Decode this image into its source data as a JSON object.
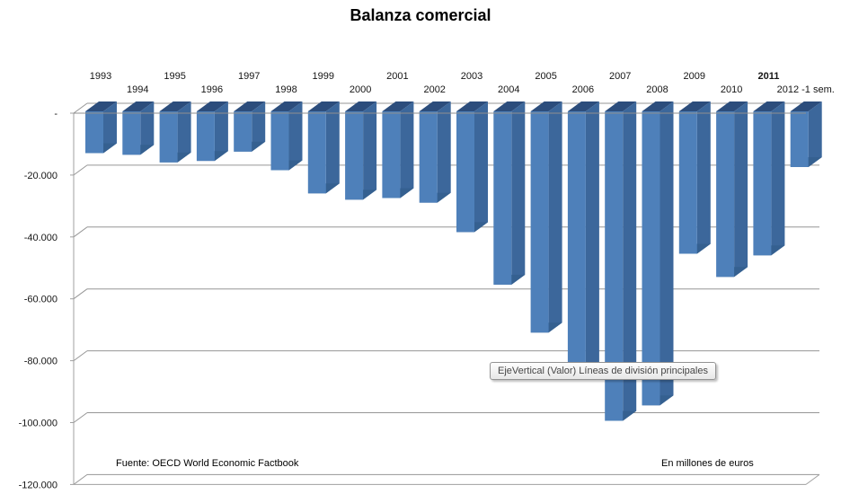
{
  "title": "Balanza comercial",
  "chart_data": {
    "type": "bar",
    "style": "3d-column",
    "title": "Balanza comercial",
    "xlabel": "",
    "ylabel": "",
    "units_note": "En millones de euros",
    "categories": [
      "1993",
      "1994",
      "1995",
      "1996",
      "1997",
      "1998",
      "1999",
      "2000",
      "2001",
      "2002",
      "2003",
      "2004",
      "2005",
      "2006",
      "2007",
      "2008",
      "2009",
      "2010",
      "2011",
      "2012 -1 sem."
    ],
    "values": [
      -13500,
      -14000,
      -16500,
      -16000,
      -13000,
      -19000,
      -26500,
      -28500,
      -28000,
      -29500,
      -39000,
      -56000,
      -71500,
      -85000,
      -100000,
      -95000,
      -46000,
      -53500,
      -46500,
      -18000
    ],
    "bold_category": "2011",
    "ylim": [
      -120000,
      0
    ],
    "ytick_step": 20000,
    "ytick_labels": [
      "-",
      "-20.000",
      "-40.000",
      "-60.000",
      "-80.000",
      "-100.000",
      "-120.000"
    ],
    "grid": true,
    "legend": "none"
  },
  "tooltip": {
    "text": "EjeVertical (Valor)  Líneas de división principales"
  },
  "footnotes": {
    "source": "Fuente: OECD World Economic Factbook",
    "units": "En millones de euros"
  },
  "colors": {
    "bar_front": "#4e80ba",
    "bar_side": "#3c679b",
    "bar_bottom": "#356090",
    "bar_top": "#2c4d7c",
    "gridline": "#969696",
    "axis_line": "#a0a0a0",
    "front_zero_line": "#8f8f8f",
    "text": "#151515"
  }
}
